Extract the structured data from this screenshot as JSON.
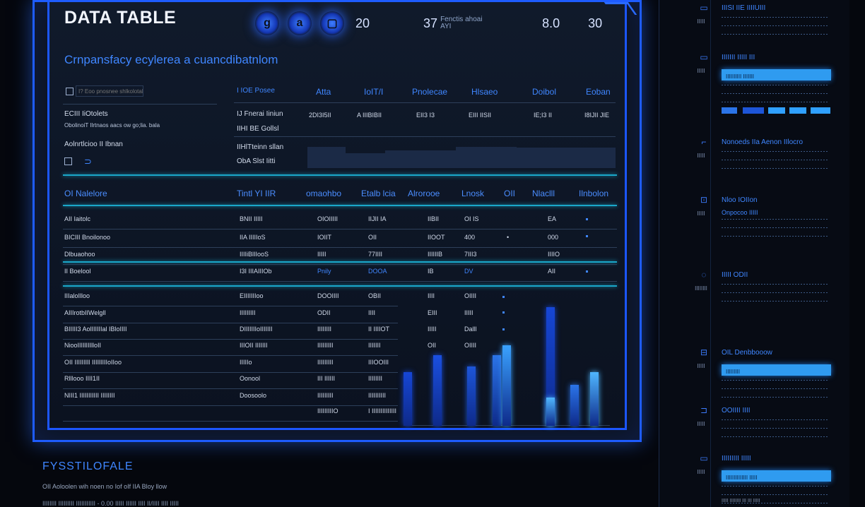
{
  "window": {
    "title": "DATA TABLE"
  },
  "toolbar": {
    "buttons": [
      {
        "icon": "g",
        "name": "toolbar-g-icon"
      },
      {
        "icon": "a",
        "name": "toolbar-a-icon"
      },
      {
        "icon": "▢",
        "name": "toolbar-square-icon"
      }
    ],
    "stat1": "20",
    "stat2": "37",
    "stat2_caption": "Fenctis ahoai AYI",
    "stat3": "8.0",
    "stat4": "30"
  },
  "subtitle": "Crnpansfacy ecylerea a cuancdibatnlom",
  "summary": {
    "filter_placeholder": "I? Eoo pnosnee shlkolotal",
    "col_headers": [
      "I IOE Posee",
      "Atta",
      "IoIT/I",
      "Pnolecae",
      "Hlsaeo",
      "Doibol",
      "Eoban"
    ],
    "row1_left": "ECIII IiOtolets",
    "row1_left2": "ObolinoiT Ilrtnaos aacs ow go;lia. bala",
    "row1_mid": "IJ Fnerai Iiniun",
    "row1_mid2": "IIHI BE Gollsl",
    "row1_values": [
      "2DI3I5II",
      "A IIIBIBII",
      "EII3 I3",
      "EIII IISII",
      "IE;I3 II",
      "I8IJII JIE"
    ],
    "row2_left": "Aolnrtlcioo II Ibnan",
    "row2_mid": "IIHlTteinn sllan",
    "row2_mid2": "ObA Slst Iitti"
  },
  "table": {
    "headers": [
      "OI Nalelore",
      "Tintl YI IIR",
      "omaohbo",
      "Etalb lcia",
      "Alrorooe",
      "Lnosk",
      "OII",
      "Nlaclll",
      "Ilnbolon"
    ],
    "rows": [
      {
        "c0": "AII Iaitolc",
        "c1": "BNII IIIII",
        "c2": "OIOIIIII",
        "c3": "IIJII IA",
        "c4": "IIBII",
        "c5": "OI IS",
        "c6": "",
        "c7": "EA"
      },
      {
        "c0": "BICIII Bnoilonoo",
        "c1": "IIA IIIIIoS",
        "c2": "IOIIT",
        "c3": "OII",
        "c4": "IIOOT",
        "c5": "400",
        "c6": "•",
        "c7": "000"
      },
      {
        "c0": "Dlbuaohoo",
        "c1": "IIIIiBlIIooS",
        "c2": "IIIII",
        "c3": "77IIII",
        "c4": "IIIIIIB",
        "c5": "7III3",
        "c6": "",
        "c7": "IIIIO"
      },
      {
        "c0": "II Boelool",
        "c1": "I3I IIIAIIIOb",
        "c2": "Pnily",
        "c3": "DOOA",
        "c4": "IB",
        "c5": "DV",
        "c6": "",
        "c7": "AII"
      },
      {
        "c0": "IIIaloIlloo",
        "c1": "EIIIIIIIoo",
        "c2": "DOOIIII",
        "c3": "OBII",
        "c4": "IIII",
        "c5": "OIIII",
        "c6": "",
        "c7": ""
      },
      {
        "c0": "AIIIrotbIIWelglI",
        "c1": "IIIIIIIII",
        "c2": "ODII",
        "c3": "IIII",
        "c4": "EIII",
        "c5": "IIIII",
        "c6": "",
        "c7": ""
      },
      {
        "c0": "BIIIII3 AolIIIIIIal IBloIIII",
        "c1": "DIIIIIIIoIIIIIII",
        "c2": "IIIIIIII",
        "c3": "II IIIIOT",
        "c4": "IIIII",
        "c5": "Dalll",
        "c6": "",
        "c7": ""
      },
      {
        "c0": "NiooIIIIlIIIlloII",
        "c1": "IIIOII IIIIIII",
        "c2": "IIIIIIIII",
        "c3": "IIIIIII",
        "c4": "OII",
        "c5": "OIIII",
        "c6": "",
        "c7": ""
      },
      {
        "c0": "OII IIIIIIIlI IIIIlIIIIoIIoo",
        "c1": "IIIIIo",
        "c2": "IIIIIIIII",
        "c3": "IIIOOIII",
        "c4": "",
        "c5": "",
        "c6": "",
        "c7": ""
      },
      {
        "c0": "Rlllooo IIII1II",
        "c1": "Oonool",
        "c2": "III IIIIII",
        "c3": "IIIIIIII",
        "c4": "",
        "c5": "",
        "c6": "",
        "c7": ""
      },
      {
        "c0": "NIII1 IIIIIIIIIII IIIIIIII",
        "c1": "Doosoolo",
        "c2": "IIIIIIIII",
        "c3": "IIIIIIIIII",
        "c4": "",
        "c5": "",
        "c6": "",
        "c7": ""
      },
      {
        "c0": "",
        "c1": "",
        "c2": "IIIIIIIIIO",
        "c3": "I IIIIIIIIIIIIII",
        "c4": "",
        "c5": "",
        "c6": "",
        "c7": ""
      }
    ]
  },
  "footer": {
    "title": "FYSSTILOFALE",
    "line": "OII Aoloolen  wih noen no Iof oIf IIA Bloy llow",
    "row": "IIIIIIII IIIIIIIII  IIIIIIIIIII  -  0.00   IIIII   IIIIII   IIII   II/IIII  IIII  IIIII"
  },
  "right_panel": {
    "sections": [
      {
        "title": "IIISI IIE IIIIUIII",
        "icon": "▭",
        "label": "IIIII"
      },
      {
        "title": "IIIIIII IIIII III",
        "bar": "IIIIIIIIII IIIIIII",
        "icon": "▭",
        "label": "IIIII"
      },
      {
        "title": "Nonoeds IIa Aenon IIlocro",
        "icon": "⌐",
        "label": "IIIII"
      },
      {
        "title": "Nloo IOIIon",
        "sub": "Onpocoo IIIII",
        "icon": "⊡",
        "label": "IIIII"
      },
      {
        "title": "IIIII ODII",
        "icon": "◌",
        "label": "IIIIIIII"
      },
      {
        "title": "OIL Denbbooow",
        "bar": "IIIIIIIII",
        "icon": "⊟",
        "label": "IIIII"
      },
      {
        "title": "OOIIII IIII",
        "icon": "⊐",
        "label": "IIIII"
      },
      {
        "title": "IIIIIIIII IIIII",
        "bar": "IIIIIIIIIIIIII IIIII",
        "icon": "▭",
        "label": "IIIII"
      }
    ],
    "bottom_label": "IIIII IIIIIIII III III IIIII"
  },
  "colors": {
    "accent": "#1e5cff",
    "bar_dark": "#1646d6",
    "bar_light": "#4fb6ff",
    "cyan": "#1aa7c9"
  }
}
